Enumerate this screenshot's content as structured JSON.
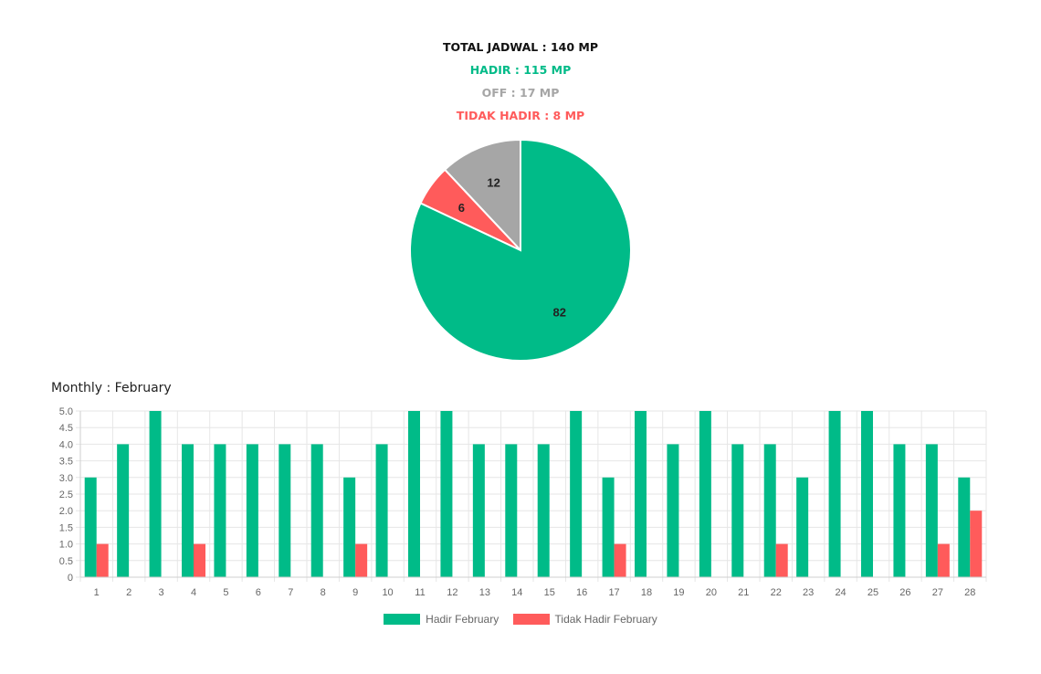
{
  "summary": {
    "total": "TOTAL JADWAL : 140 MP",
    "hadir": "HADIR : 115 MP",
    "off": "OFF : 17 MP",
    "tidak_hadir": "TIDAK HADIR : 8 MP"
  },
  "colors": {
    "total": "#111111",
    "hadir": "#00bb88",
    "off": "#a6a6a6",
    "tidak_hadir": "#ff5b5b",
    "grid": "#e6e6e6",
    "tick": "#666666"
  },
  "monthly_label": "Monthly : February",
  "chart_data": [
    {
      "type": "pie",
      "slices": [
        {
          "label": "12",
          "value": 12,
          "color": "#a6a6a6"
        },
        {
          "label": "6",
          "value": 6,
          "color": "#ff5b5b"
        },
        {
          "label": "82",
          "value": 82,
          "color": "#00bb88"
        }
      ]
    },
    {
      "type": "bar",
      "categories": [
        "1",
        "2",
        "3",
        "4",
        "5",
        "6",
        "7",
        "8",
        "9",
        "10",
        "11",
        "12",
        "13",
        "14",
        "15",
        "16",
        "17",
        "18",
        "19",
        "20",
        "21",
        "22",
        "23",
        "24",
        "25",
        "26",
        "27",
        "28"
      ],
      "series": [
        {
          "name": "Hadir February",
          "color": "#00bb88",
          "values": [
            3,
            4,
            5,
            4,
            4,
            4,
            4,
            4,
            3,
            4,
            5,
            5,
            4,
            4,
            4,
            5,
            3,
            5,
            4,
            5,
            4,
            4,
            3,
            5,
            5,
            4,
            4,
            3
          ]
        },
        {
          "name": "Tidak Hadir February",
          "color": "#ff5b5b",
          "values": [
            1,
            0,
            0,
            1,
            0,
            0,
            0,
            0,
            1,
            0,
            0,
            0,
            0,
            0,
            0,
            0,
            1,
            0,
            0,
            0,
            0,
            1,
            0,
            0,
            0,
            0,
            1,
            2
          ]
        }
      ],
      "y_ticks": [
        "0",
        "0.5",
        "1.0",
        "1.5",
        "2.0",
        "2.5",
        "3.0",
        "3.5",
        "4.0",
        "4.5",
        "5.0"
      ],
      "ylim": [
        0,
        5
      ],
      "grid": true,
      "legend": "bottom"
    }
  ]
}
